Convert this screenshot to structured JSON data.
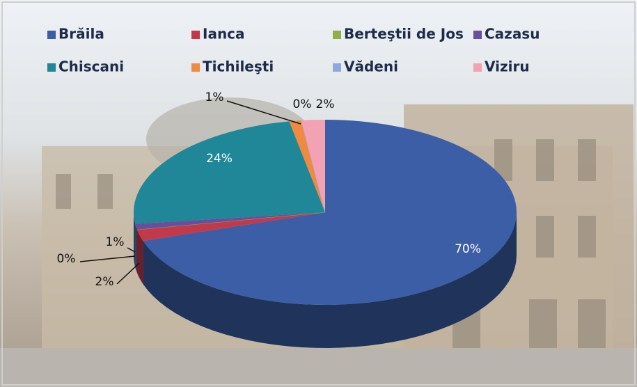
{
  "chart_data": {
    "type": "pie",
    "categories": [
      "Brăila",
      "Ianca",
      "Berteştii de Jos",
      "Cazasu",
      "Chiscani",
      "Tichileşti",
      "Vădeni",
      "Viziru"
    ],
    "values": [
      70,
      2,
      0,
      1,
      24,
      1,
      0,
      2
    ],
    "value_labels": [
      "70%",
      "2%",
      "0%",
      "1%",
      "24%",
      "1%",
      "0%",
      "2%"
    ],
    "colors": [
      "#3b5ea6",
      "#c23a4a",
      "#8cb04a",
      "#6a4e9e",
      "#1f8797",
      "#ef8a3f",
      "#8ca8df",
      "#f2a2b2"
    ],
    "legend": "top"
  }
}
